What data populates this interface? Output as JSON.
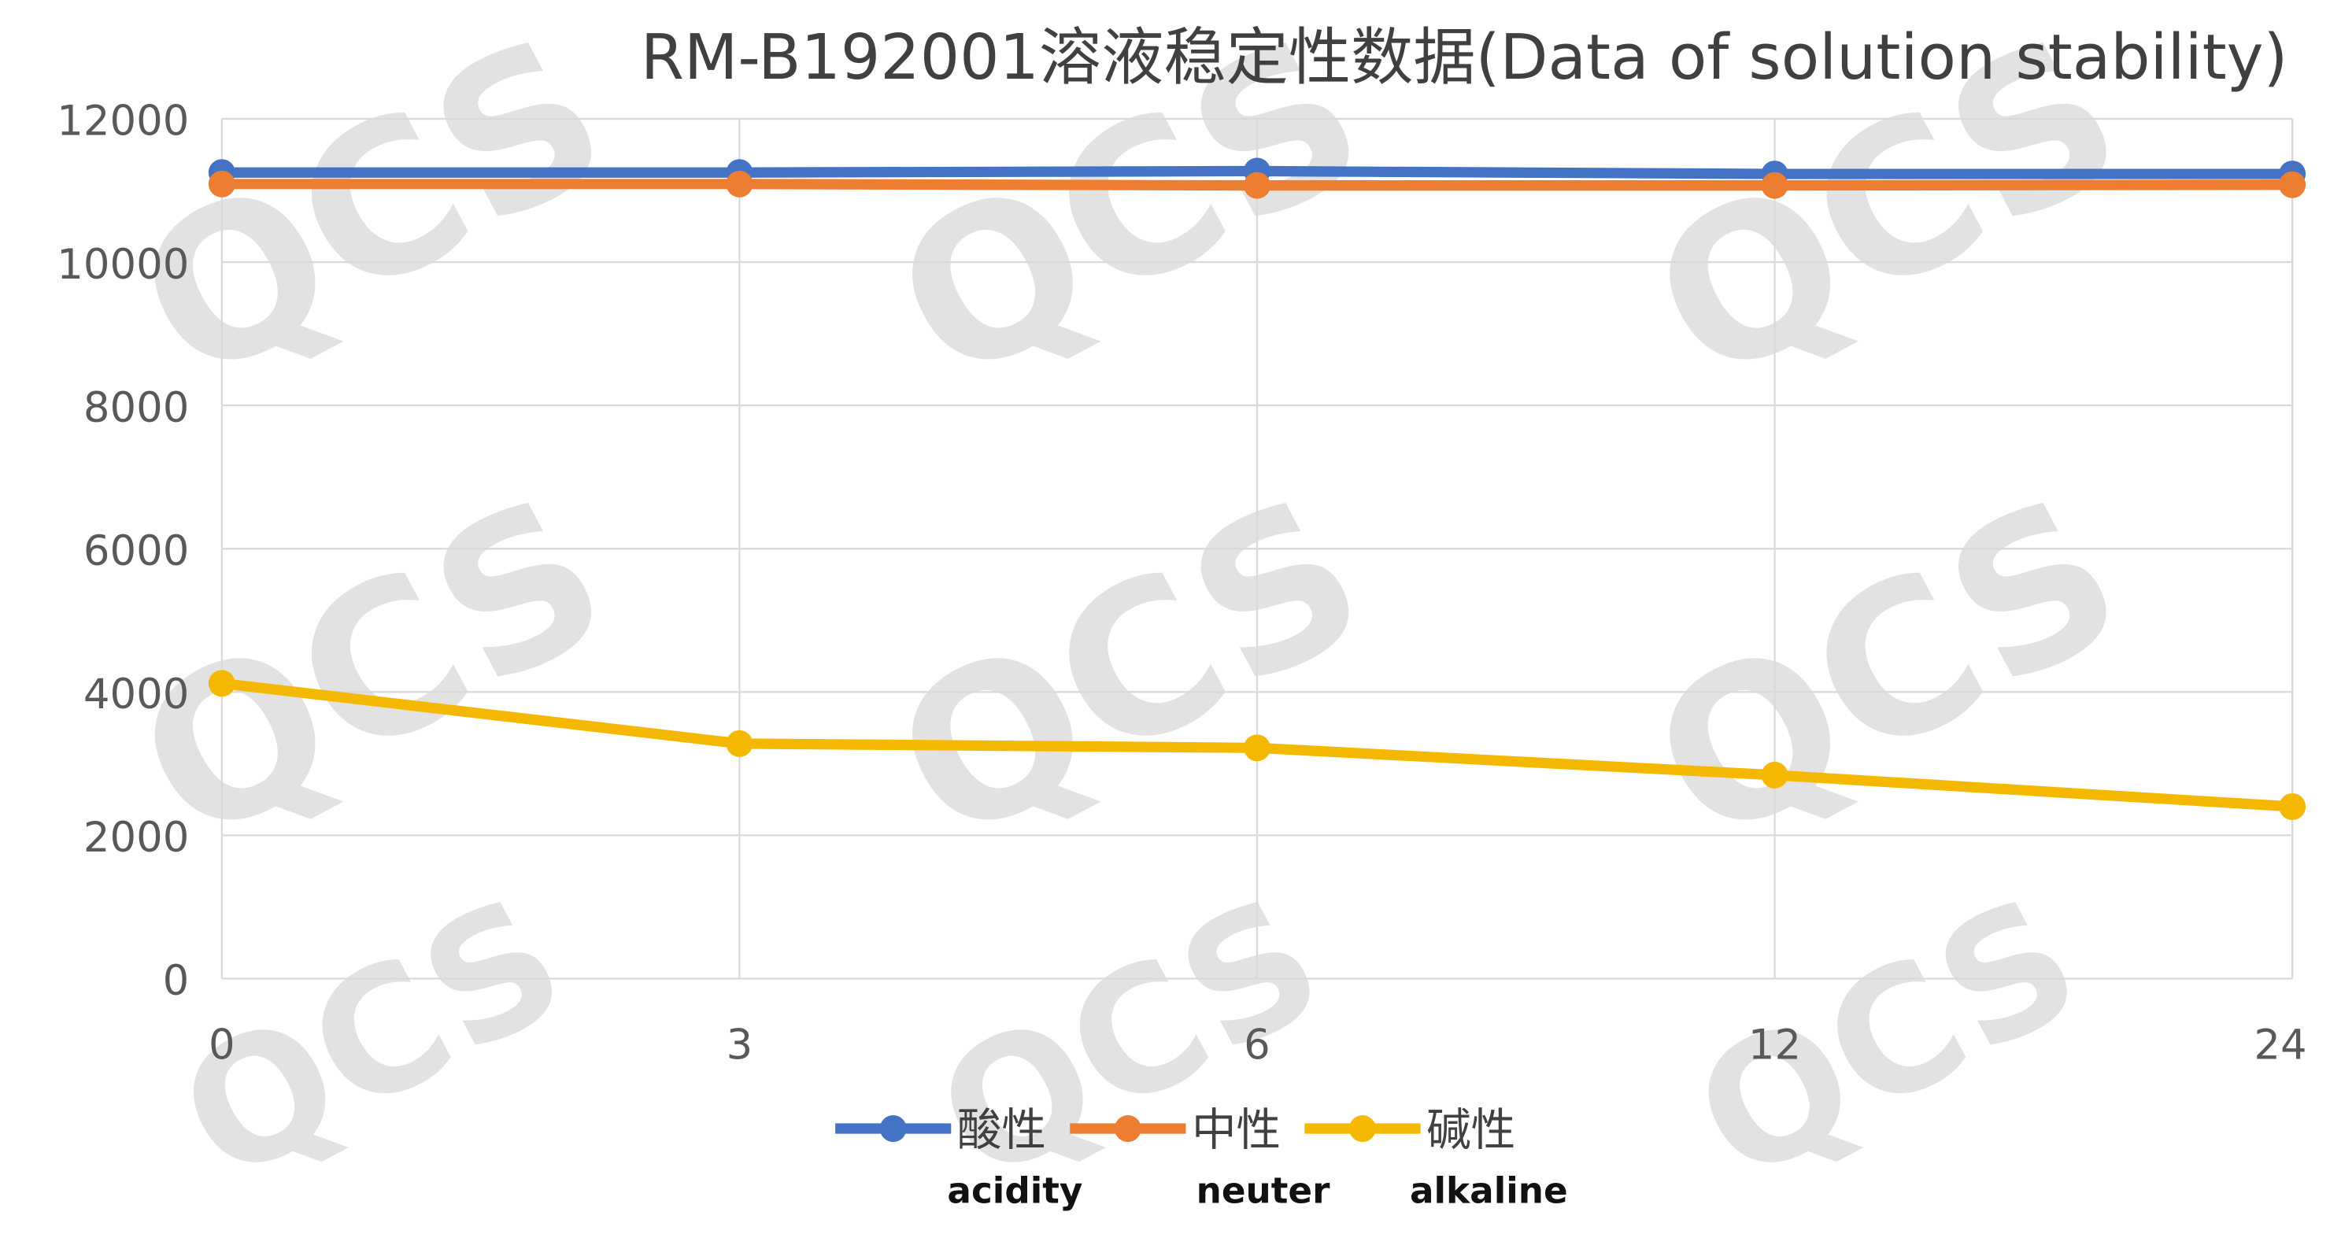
{
  "chart_data": {
    "type": "line",
    "title": "RM-B192001溶液稳定性数据(Data of solution stability)",
    "xlabel": "",
    "ylabel": "",
    "categories": [
      "0",
      "3",
      "6",
      "12",
      "24"
    ],
    "ylim": [
      0,
      12000
    ],
    "yticks": [
      "0",
      "2000",
      "4000",
      "6000",
      "8000",
      "10000",
      "12000"
    ],
    "grid": true,
    "legend_position": "bottom",
    "series": [
      {
        "name": "酸性",
        "subtitle": "acidity",
        "color": "#4472c4",
        "values": [
          11250,
          11250,
          11270,
          11230,
          11230
        ]
      },
      {
        "name": "中性",
        "subtitle": "neuter",
        "color": "#ed7d31",
        "values": [
          11090,
          11090,
          11070,
          11070,
          11080
        ]
      },
      {
        "name": "碱性",
        "subtitle": "alkaline",
        "color": "#f5b800",
        "values": [
          4120,
          3280,
          3220,
          2840,
          2400
        ]
      }
    ],
    "watermark": "QCS"
  }
}
